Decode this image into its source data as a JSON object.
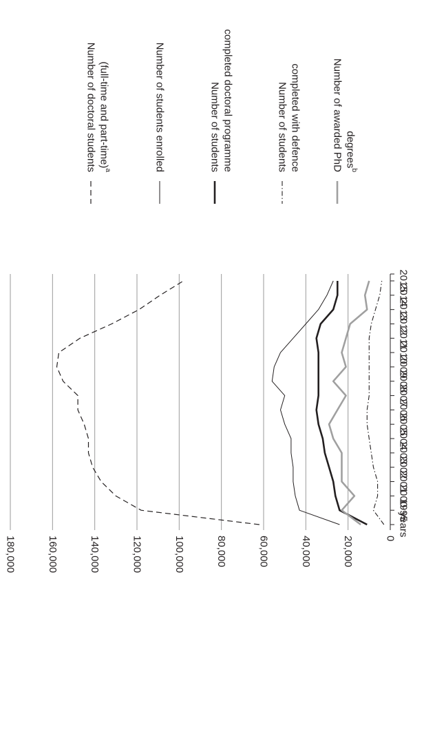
{
  "chart_data": {
    "type": "line",
    "orientation": "rotated-90-clockwise",
    "title": "",
    "xlabel": "",
    "ylabel": "",
    "grid": true,
    "legend_position": "right",
    "ylim": [
      0,
      180000
    ],
    "y_ticks": [
      "0",
      "20,000",
      "40,000",
      "60,000",
      "80,000",
      "100,000",
      "120,000",
      "140,000",
      "160,000",
      "180,000"
    ],
    "y_tick_values": [
      0,
      20000,
      40000,
      60000,
      80000,
      100000,
      120000,
      140000,
      160000,
      180000
    ],
    "categories": [
      "years",
      "1995",
      "2000",
      "2001",
      "2002",
      "2003",
      "2004",
      "2005",
      "2006",
      "2007",
      "2008",
      "2009",
      "2010",
      "2011",
      "2012",
      "2013",
      "2014",
      "2015"
    ],
    "series": [
      {
        "name": "Number of doctoral students (full-time and part-time)",
        "superscript": "a",
        "style": "dashed",
        "color": "#231f20",
        "values": [
          62000,
          118000,
          130000,
          137000,
          141000,
          143000,
          143000,
          145000,
          148000,
          148000,
          155000,
          158000,
          157000,
          147000,
          132000,
          119000,
          109000,
          98000
        ]
      },
      {
        "name": "Number of students enrolled",
        "style": "solid-thin",
        "color": "#231f20",
        "values": [
          24000,
          43000,
          45000,
          46000,
          46000,
          47000,
          47000,
          50000,
          52000,
          50000,
          56000,
          55000,
          52000,
          46000,
          40000,
          34000,
          30000,
          27000
        ]
      },
      {
        "name": "Number of students completed doctoral programme",
        "style": "solid-thick",
        "color": "#231f20",
        "values": [
          11000,
          24000,
          26000,
          27000,
          29000,
          31000,
          32000,
          34000,
          35000,
          34000,
          34000,
          34000,
          34000,
          35000,
          33000,
          27000,
          25000,
          25000
        ]
      },
      {
        "name": "Number of students completed with defence",
        "style": "dash-dot",
        "color": "#231f20",
        "values": [
          3000,
          8000,
          6000,
          6000,
          8000,
          9000,
          10000,
          11000,
          11000,
          10000,
          10000,
          10000,
          10000,
          10000,
          9000,
          7000,
          5000,
          4000
        ]
      },
      {
        "name": "Number of awarded PhD degrees",
        "superscript": "b",
        "style": "solid-gray",
        "color": "#a0a0a0",
        "values": [
          14000,
          23000,
          17000,
          23000,
          23000,
          23000,
          27000,
          29000,
          25000,
          21000,
          27000,
          21000,
          23000,
          21000,
          19000,
          11000,
          12000,
          10000
        ]
      }
    ],
    "legend": [
      {
        "lines": [
          "Number of doctoral students",
          "(full-time and part-time)"
        ],
        "sup": "a"
      },
      {
        "lines": [
          "Number of students enrolled"
        ],
        "sup": ""
      },
      {
        "lines": [
          "Number of students",
          "completed doctoral programme"
        ],
        "sup": ""
      },
      {
        "lines": [
          "Number of students",
          "completed with defence"
        ],
        "sup": ""
      },
      {
        "lines": [
          "Number of awarded PhD",
          "degrees"
        ],
        "sup": "b"
      }
    ]
  }
}
